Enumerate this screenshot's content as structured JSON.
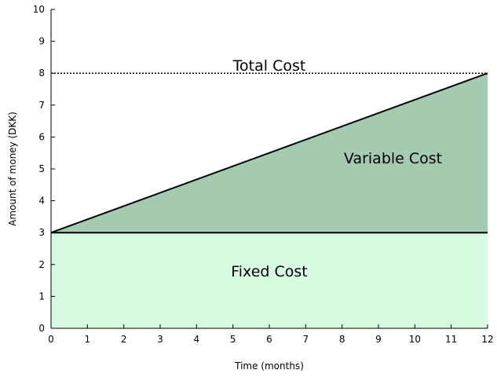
{
  "chart_data": {
    "type": "area",
    "xlabel": "Time (months)",
    "ylabel": "Amount of money (DKK)",
    "xlim": [
      0,
      12
    ],
    "ylim": [
      0,
      10
    ],
    "x_ticks": [
      0,
      1,
      2,
      3,
      4,
      5,
      6,
      7,
      8,
      9,
      10,
      11,
      12
    ],
    "y_ticks": [
      0,
      1,
      2,
      3,
      4,
      5,
      6,
      7,
      8,
      9,
      10
    ],
    "grid": false,
    "fixed_cost": {
      "label": "Fixed Cost",
      "x": [
        0,
        12
      ],
      "y": [
        3,
        3
      ],
      "color": "#d7fbe1"
    },
    "variable_cost": {
      "label": "Variable Cost",
      "x": [
        0,
        12
      ],
      "y": [
        3,
        8
      ],
      "color": "#a4cbb0"
    },
    "total_cost": {
      "label": "Total Cost",
      "value": 8,
      "style": "dotted"
    }
  }
}
